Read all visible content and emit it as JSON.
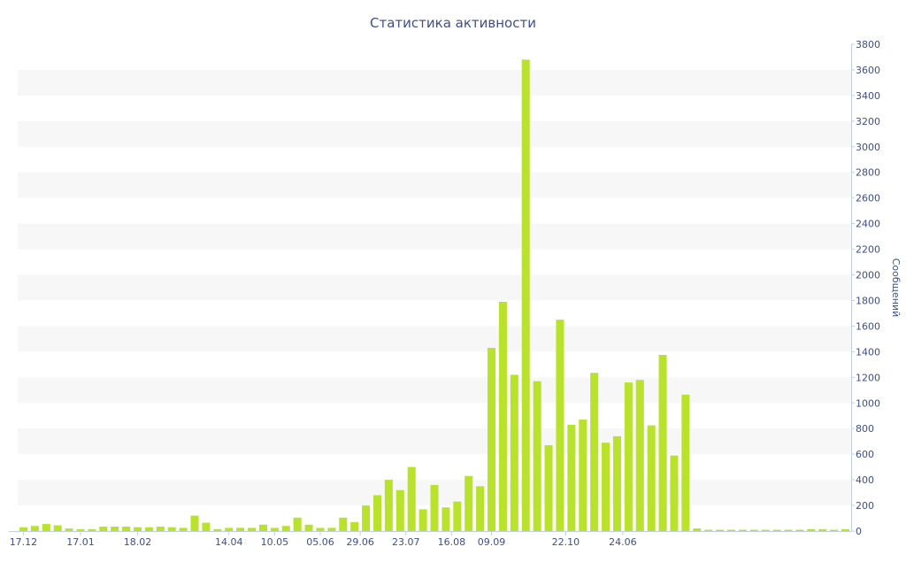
{
  "chart_data": {
    "type": "bar",
    "title": "Статистика активности",
    "ylabel": "Сообщений",
    "y_axis_position": "right",
    "ylim": [
      0,
      3800
    ],
    "y_ticks": [
      0,
      200,
      400,
      600,
      800,
      1000,
      1200,
      1400,
      1600,
      1800,
      2000,
      2200,
      2400,
      2600,
      2800,
      3000,
      3200,
      3400,
      3600,
      3800
    ],
    "x_ticks": [
      {
        "label": "17.12",
        "index": 0
      },
      {
        "label": "17.01",
        "index": 5
      },
      {
        "label": "18.02",
        "index": 10
      },
      {
        "label": "14.04",
        "index": 18
      },
      {
        "label": "10.05",
        "index": 22
      },
      {
        "label": "05.06",
        "index": 26
      },
      {
        "label": "29.06",
        "index": 29.5
      },
      {
        "label": "23.07",
        "index": 33.5
      },
      {
        "label": "16.08",
        "index": 37.5
      },
      {
        "label": "09.09",
        "index": 41
      },
      {
        "label": "22.10",
        "index": 47.5
      },
      {
        "label": "24.06",
        "index": 52.5
      }
    ],
    "grid": "alternating horizontal bands",
    "bar_color": "#b9e22c",
    "band_color": "#f7f7f7",
    "text_color": "#3e4e8c",
    "series": [
      {
        "values": [
          30,
          40,
          55,
          45,
          20,
          15,
          15,
          35,
          35,
          35,
          30,
          30,
          35,
          30,
          25,
          120,
          65,
          15,
          25,
          25,
          25,
          50,
          25,
          40,
          105,
          50,
          25,
          25,
          105,
          70,
          200,
          280,
          400,
          320,
          500,
          170,
          360,
          185,
          230,
          430,
          350,
          1430,
          1790,
          1220,
          3680,
          1170,
          670,
          1650,
          830,
          870,
          1235,
          690,
          740,
          1160,
          1180,
          825,
          1375,
          590,
          1065,
          20,
          10,
          10,
          10,
          10,
          10,
          10,
          10,
          10,
          10,
          15,
          15,
          10,
          15
        ]
      }
    ]
  }
}
